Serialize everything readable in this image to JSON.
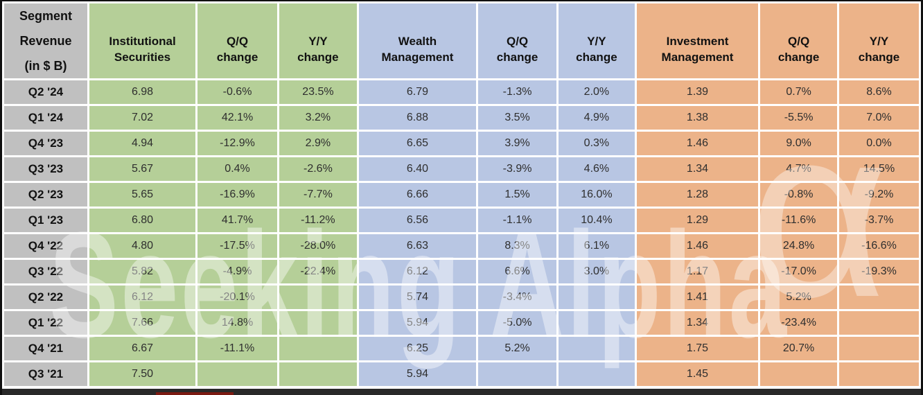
{
  "chart_data": {
    "type": "table",
    "title": "Segment Revenue (in $ B)",
    "corner_header": "Segment\nRevenue\n(in $ B)",
    "columns": [
      {
        "id": "institutional-securities",
        "label": "Institutional\nSecurities",
        "group": "green"
      },
      {
        "id": "institutional-securities-qq",
        "label": "Q/Q\nchange",
        "group": "green"
      },
      {
        "id": "institutional-securities-yy",
        "label": "Y/Y\nchange",
        "group": "green"
      },
      {
        "id": "wealth-management",
        "label": "Wealth\nManagement",
        "group": "blue"
      },
      {
        "id": "wealth-management-qq",
        "label": "Q/Q\nchange",
        "group": "blue"
      },
      {
        "id": "wealth-management-yy",
        "label": "Y/Y\nchange",
        "group": "blue"
      },
      {
        "id": "investment-management",
        "label": "Investment\nManagement",
        "group": "orange"
      },
      {
        "id": "investment-management-qq",
        "label": "Q/Q\nchange",
        "group": "orange"
      },
      {
        "id": "investment-management-yy",
        "label": "Y/Y\nchange",
        "group": "orange"
      }
    ],
    "rows": [
      {
        "label": "Q2 '24",
        "values": [
          "6.98",
          "-0.6%",
          "23.5%",
          "6.79",
          "-1.3%",
          "2.0%",
          "1.39",
          "0.7%",
          "8.6%"
        ]
      },
      {
        "label": "Q1 '24",
        "values": [
          "7.02",
          "42.1%",
          "3.2%",
          "6.88",
          "3.5%",
          "4.9%",
          "1.38",
          "-5.5%",
          "7.0%"
        ]
      },
      {
        "label": "Q4 '23",
        "values": [
          "4.94",
          "-12.9%",
          "2.9%",
          "6.65",
          "3.9%",
          "0.3%",
          "1.46",
          "9.0%",
          "0.0%"
        ]
      },
      {
        "label": "Q3 '23",
        "values": [
          "5.67",
          "0.4%",
          "-2.6%",
          "6.40",
          "-3.9%",
          "4.6%",
          "1.34",
          "4.7%",
          "14.5%"
        ]
      },
      {
        "label": "Q2 '23",
        "values": [
          "5.65",
          "-16.9%",
          "-7.7%",
          "6.66",
          "1.5%",
          "16.0%",
          "1.28",
          "-0.8%",
          "-9.2%"
        ]
      },
      {
        "label": "Q1 '23",
        "values": [
          "6.80",
          "41.7%",
          "-11.2%",
          "6.56",
          "-1.1%",
          "10.4%",
          "1.29",
          "-11.6%",
          "-3.7%"
        ]
      },
      {
        "label": "Q4 '22",
        "values": [
          "4.80",
          "-17.5%",
          "-28.0%",
          "6.63",
          "8.3%",
          "6.1%",
          "1.46",
          "24.8%",
          "-16.6%"
        ]
      },
      {
        "label": "Q3 '22",
        "values": [
          "5.82",
          "-4.9%",
          "-22.4%",
          "6.12",
          "6.6%",
          "3.0%",
          "1.17",
          "-17.0%",
          "-19.3%"
        ]
      },
      {
        "label": "Q2 '22",
        "values": [
          "6.12",
          "-20.1%",
          "",
          "5.74",
          "-3.4%",
          "",
          "1.41",
          "5.2%",
          ""
        ]
      },
      {
        "label": "Q1 '22",
        "values": [
          "7.66",
          "14.8%",
          "",
          "5.94",
          "-5.0%",
          "",
          "1.34",
          "-23.4%",
          ""
        ]
      },
      {
        "label": "Q4 '21",
        "values": [
          "6.67",
          "-11.1%",
          "",
          "6.25",
          "5.2%",
          "",
          "1.75",
          "20.7%",
          ""
        ]
      },
      {
        "label": "Q3 '21",
        "values": [
          "7.50",
          "",
          "",
          "5.94",
          "",
          "",
          "1.45",
          "",
          ""
        ]
      }
    ],
    "watermark": {
      "text": "Seeking Alpha",
      "symbol": "α"
    },
    "colors": {
      "gray": "#c0c0c0",
      "green": "#b5cf98",
      "blue": "#b8c6e3",
      "orange": "#ecb389"
    },
    "layout_hints": {
      "grid": "white gridlines between cells",
      "legend": "none",
      "column_group_order": [
        "green: Institutional Securities",
        "blue: Wealth Management",
        "orange: Investment Management"
      ]
    }
  }
}
